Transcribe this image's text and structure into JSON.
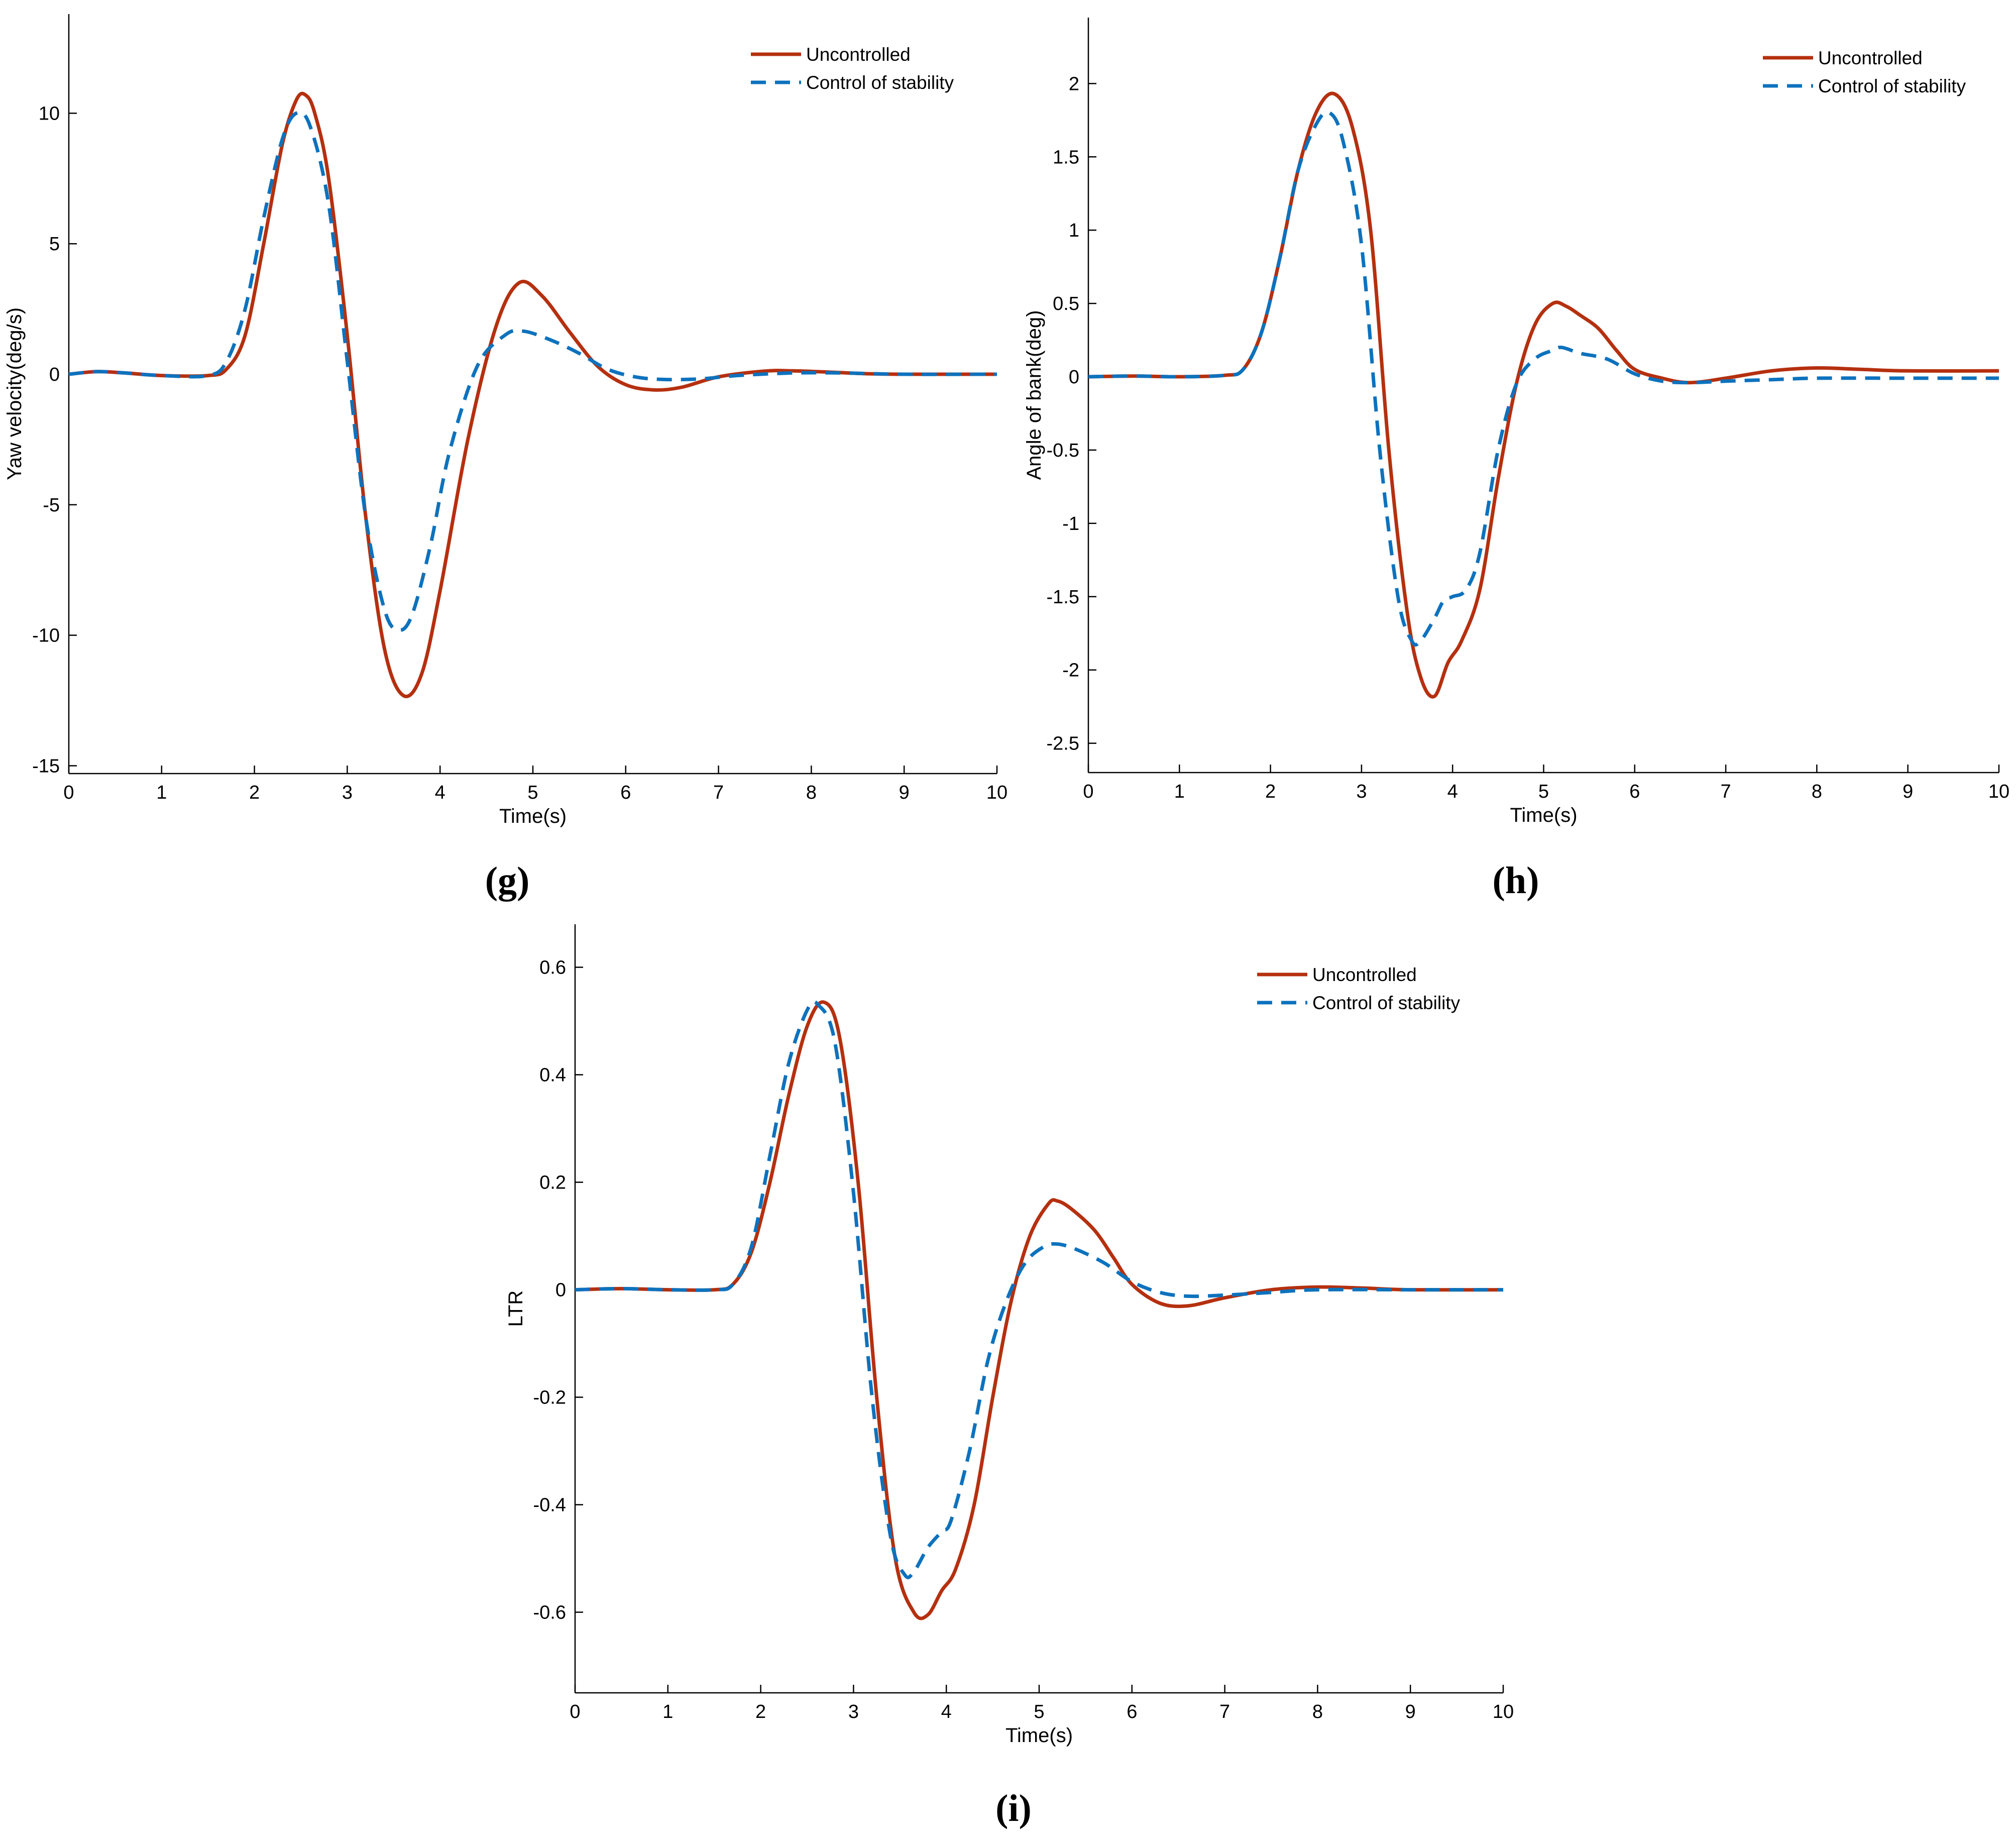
{
  "colors": {
    "uncontrolled": "#b5300f",
    "controlled": "#0d72bd",
    "axis": "#000000"
  },
  "chart_data": [
    {
      "type": "line",
      "panel_label": "(g)",
      "xlabel": "Time(s)",
      "ylabel": "Yaw velocity(deg/s)",
      "xlim": [
        0,
        10
      ],
      "ylim": [
        -15.3,
        13.8
      ],
      "xticks": [
        0,
        1,
        2,
        3,
        4,
        5,
        6,
        7,
        8,
        9,
        10
      ],
      "yticks": [
        -15,
        -10,
        -5,
        0,
        5,
        10
      ],
      "grid": false,
      "legend_position": "top-right",
      "legend": [
        "Uncontrolled",
        "Control of stability"
      ],
      "series": [
        {
          "name": "Uncontrolled",
          "style": "solid",
          "x": [
            0,
            0.3,
            0.6,
            1,
            1.5,
            1.7,
            1.9,
            2.1,
            2.3,
            2.45,
            2.55,
            2.65,
            2.8,
            3.0,
            3.2,
            3.4,
            3.6,
            3.8,
            4.0,
            4.3,
            4.6,
            4.85,
            5.1,
            5.4,
            5.7,
            6.0,
            6.3,
            6.6,
            7.0,
            7.5,
            7.8,
            8.2,
            8.6,
            9,
            9.5,
            10
          ],
          "y": [
            0,
            0.1,
            0.05,
            -0.05,
            -0.05,
            0.2,
            1.5,
            5.0,
            8.8,
            10.5,
            10.7,
            10.0,
            7.5,
            1.5,
            -5.5,
            -10.5,
            -12.3,
            -11.5,
            -8.3,
            -2.5,
            1.8,
            3.5,
            3.0,
            1.6,
            0.3,
            -0.4,
            -0.6,
            -0.5,
            -0.1,
            0.12,
            0.13,
            0.08,
            0.02,
            0.0,
            0.0,
            0.0
          ]
        },
        {
          "name": "Control of stability",
          "style": "dashed",
          "x": [
            0,
            0.3,
            0.6,
            1,
            1.5,
            1.7,
            1.9,
            2.1,
            2.3,
            2.45,
            2.6,
            2.8,
            3.0,
            3.2,
            3.4,
            3.55,
            3.7,
            3.9,
            4.1,
            4.4,
            4.7,
            4.9,
            5.2,
            5.5,
            5.8,
            6.1,
            6.4,
            6.8,
            7.2,
            7.8,
            8.3,
            9,
            10
          ],
          "y": [
            0,
            0.1,
            0.05,
            -0.05,
            -0.05,
            0.5,
            2.5,
            6.0,
            9.0,
            10.0,
            9.5,
            6.5,
            0.5,
            -5.5,
            -9.0,
            -9.8,
            -9.2,
            -6.5,
            -3.0,
            0.3,
            1.5,
            1.65,
            1.3,
            0.8,
            0.2,
            -0.1,
            -0.2,
            -0.18,
            -0.05,
            0.05,
            0.05,
            0.0,
            0.0
          ]
        }
      ]
    },
    {
      "type": "line",
      "panel_label": "(h)",
      "xlabel": "Time(s)",
      "ylabel": "Angle of bank(deg)",
      "xlim": [
        0,
        10
      ],
      "ylim": [
        -2.7,
        2.45
      ],
      "xticks": [
        0,
        1,
        2,
        3,
        4,
        5,
        6,
        7,
        8,
        9,
        10
      ],
      "yticks": [
        -2.5,
        -2,
        -1.5,
        -1,
        -0.5,
        0,
        0.5,
        1,
        1.5,
        2
      ],
      "grid": false,
      "legend_position": "top-right",
      "legend": [
        "Uncontrolled",
        "Control of stability"
      ],
      "series": [
        {
          "name": "Uncontrolled",
          "style": "solid",
          "x": [
            0,
            0.5,
            1,
            1.5,
            1.7,
            1.9,
            2.1,
            2.3,
            2.5,
            2.7,
            2.9,
            3.1,
            3.3,
            3.5,
            3.65,
            3.8,
            3.95,
            4.1,
            4.3,
            4.5,
            4.7,
            4.9,
            5.1,
            5.25,
            5.4,
            5.6,
            5.8,
            6.0,
            6.3,
            6.6,
            7.0,
            7.5,
            8.0,
            8.5,
            9,
            10
          ],
          "y": [
            0,
            0.005,
            0,
            0.01,
            0.05,
            0.3,
            0.8,
            1.4,
            1.8,
            1.93,
            1.7,
            1.0,
            -0.5,
            -1.6,
            -2.05,
            -2.18,
            -1.95,
            -1.8,
            -1.45,
            -0.7,
            -0.05,
            0.35,
            0.5,
            0.48,
            0.42,
            0.33,
            0.18,
            0.05,
            -0.01,
            -0.04,
            -0.01,
            0.04,
            0.06,
            0.05,
            0.04,
            0.04
          ]
        },
        {
          "name": "Control of stability",
          "style": "dashed",
          "x": [
            0,
            0.5,
            1,
            1.5,
            1.7,
            1.9,
            2.1,
            2.3,
            2.5,
            2.65,
            2.8,
            3.0,
            3.2,
            3.4,
            3.55,
            3.65,
            3.8,
            3.9,
            4.0,
            4.15,
            4.3,
            4.5,
            4.7,
            4.9,
            5.1,
            5.2,
            5.4,
            5.7,
            6.0,
            6.3,
            6.6,
            7.0,
            7.5,
            8,
            9,
            10
          ],
          "y": [
            0,
            0.005,
            0,
            0.01,
            0.05,
            0.3,
            0.8,
            1.4,
            1.72,
            1.8,
            1.6,
            0.9,
            -0.5,
            -1.5,
            -1.8,
            -1.8,
            -1.65,
            -1.53,
            -1.5,
            -1.45,
            -1.2,
            -0.5,
            -0.05,
            0.12,
            0.18,
            0.2,
            0.16,
            0.12,
            0.02,
            -0.03,
            -0.04,
            -0.03,
            -0.02,
            -0.01,
            -0.01,
            -0.01
          ]
        }
      ]
    },
    {
      "type": "line",
      "panel_label": "(i)",
      "xlabel": "Time(s)",
      "ylabel": "LTR",
      "xlim": [
        0,
        10
      ],
      "ylim": [
        -0.75,
        0.68
      ],
      "xticks": [
        0,
        1,
        2,
        3,
        4,
        5,
        6,
        7,
        8,
        9,
        10
      ],
      "yticks": [
        -0.6,
        -0.4,
        -0.2,
        0,
        0.2,
        0.4,
        0.6
      ],
      "grid": false,
      "legend_position": "top-right",
      "legend": [
        "Uncontrolled",
        "Control of stability"
      ],
      "series": [
        {
          "name": "Uncontrolled",
          "style": "solid",
          "x": [
            0,
            0.5,
            1,
            1.5,
            1.7,
            1.9,
            2.1,
            2.3,
            2.5,
            2.68,
            2.85,
            3.05,
            3.25,
            3.45,
            3.65,
            3.8,
            3.95,
            4.1,
            4.3,
            4.5,
            4.7,
            4.9,
            5.1,
            5.2,
            5.35,
            5.6,
            5.8,
            6.0,
            6.3,
            6.6,
            7.0,
            7.5,
            8.0,
            8.5,
            9,
            10
          ],
          "y": [
            0,
            0.002,
            0,
            0,
            0.01,
            0.07,
            0.2,
            0.36,
            0.49,
            0.535,
            0.47,
            0.2,
            -0.2,
            -0.5,
            -0.6,
            -0.605,
            -0.56,
            -0.52,
            -0.4,
            -0.2,
            -0.02,
            0.1,
            0.16,
            0.165,
            0.15,
            0.11,
            0.06,
            0.01,
            -0.025,
            -0.03,
            -0.015,
            0.0,
            0.005,
            0.003,
            0.0,
            0.0
          ]
        },
        {
          "name": "Control of stability",
          "style": "dashed",
          "x": [
            0,
            0.5,
            1,
            1.5,
            1.7,
            1.9,
            2.1,
            2.3,
            2.5,
            2.62,
            2.8,
            3.0,
            3.2,
            3.4,
            3.55,
            3.65,
            3.8,
            3.95,
            4.05,
            4.25,
            4.45,
            4.65,
            4.85,
            5.05,
            5.2,
            5.4,
            5.7,
            6.0,
            6.3,
            6.6,
            7.0,
            7.5,
            8,
            9,
            10
          ],
          "y": [
            0,
            0.002,
            0,
            0,
            0.01,
            0.08,
            0.25,
            0.42,
            0.52,
            0.53,
            0.46,
            0.18,
            -0.2,
            -0.46,
            -0.53,
            -0.525,
            -0.48,
            -0.45,
            -0.43,
            -0.3,
            -0.13,
            -0.02,
            0.05,
            0.08,
            0.085,
            0.075,
            0.05,
            0.015,
            -0.005,
            -0.012,
            -0.01,
            -0.005,
            0.0,
            0.0,
            0.0
          ]
        }
      ]
    }
  ]
}
